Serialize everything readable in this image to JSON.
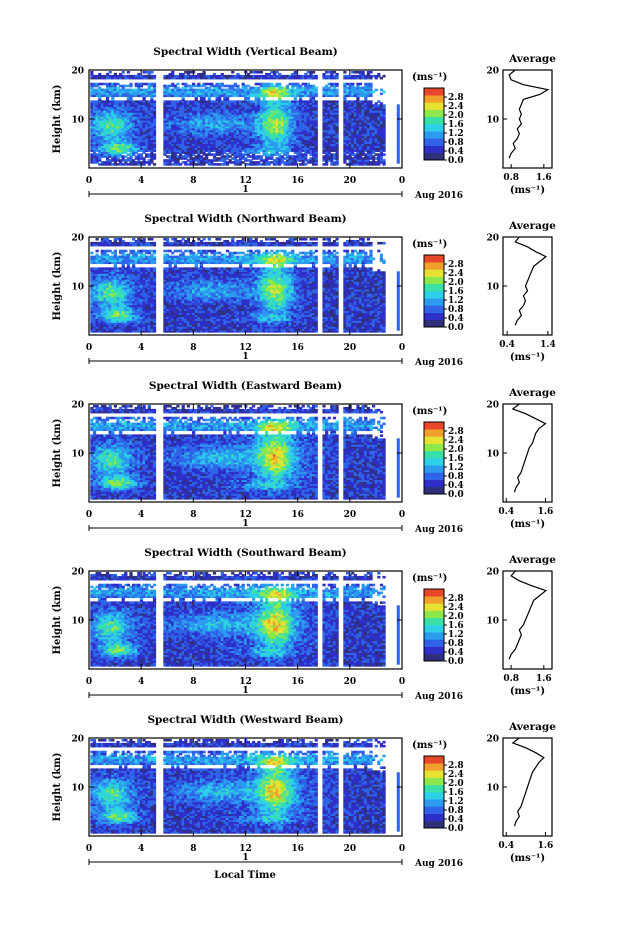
{
  "figure": {
    "time_axis_label": "Local Time",
    "date_label": "Aug 2016",
    "day_marker": "1",
    "units_label": "(ms⁻¹)",
    "height_label": "Height (km)"
  },
  "colorbar": {
    "ticks": [
      "0.0",
      "0.4",
      "0.8",
      "1.2",
      "1.6",
      "2.0",
      "2.4",
      "2.8"
    ],
    "colors": [
      "#30307a",
      "#2e2ec8",
      "#2f64e8",
      "#2a9bef",
      "#2ed0e8",
      "#39e0a8",
      "#8ee84c",
      "#e6e232",
      "#f2a02c",
      "#e8472a"
    ]
  },
  "chart_data": [
    {
      "type": "heatmap",
      "title": "Spectral Width (Vertical Beam)",
      "ylabel": "Height (km)",
      "x_ticks": [
        "0",
        "4",
        "8",
        "12",
        "16",
        "20",
        "0"
      ],
      "y_ticks": [
        "10",
        "20"
      ],
      "xlim": [
        0,
        24
      ],
      "ylim": [
        0,
        20
      ],
      "value_range": [
        0,
        3.2
      ],
      "data_gaps_hours": [
        5.3,
        17.6,
        19.2
      ],
      "average_profile": {
        "title": "Average",
        "xlabel": "(ms⁻¹)",
        "x_ticks": [
          "0.8",
          "1.6"
        ],
        "xlim": [
          0.6,
          1.8
        ],
        "y_ticks": [
          "10",
          "20"
        ],
        "heights_km": [
          2,
          3,
          4,
          5,
          6,
          7,
          8,
          9,
          10,
          11,
          12,
          13,
          14,
          15,
          16,
          17,
          18,
          19,
          20
        ],
        "values": [
          0.75,
          0.8,
          0.9,
          0.85,
          0.95,
          1.0,
          0.95,
          1.05,
          1.0,
          1.05,
          1.0,
          1.05,
          1.1,
          1.5,
          1.7,
          1.1,
          0.8,
          0.75,
          0.9
        ]
      }
    },
    {
      "type": "heatmap",
      "title": "Spectral Width (Northward Beam)",
      "ylabel": "Height (km)",
      "x_ticks": [
        "0",
        "4",
        "8",
        "12",
        "16",
        "20",
        "0"
      ],
      "y_ticks": [
        "10",
        "20"
      ],
      "xlim": [
        0,
        24
      ],
      "ylim": [
        0,
        20
      ],
      "value_range": [
        0,
        3.2
      ],
      "data_gaps_hours": [
        5.3,
        17.6,
        19.2
      ],
      "average_profile": {
        "title": "Average",
        "xlabel": "(ms⁻¹)",
        "x_ticks": [
          "0.4",
          "1.4"
        ],
        "xlim": [
          0.3,
          1.5
        ],
        "y_ticks": [
          "10",
          "20"
        ],
        "heights_km": [
          2,
          3,
          4,
          5,
          6,
          7,
          8,
          9,
          10,
          11,
          12,
          13,
          14,
          15,
          16,
          17,
          18,
          19,
          20
        ],
        "values": [
          0.6,
          0.65,
          0.75,
          0.7,
          0.8,
          0.85,
          0.8,
          0.9,
          0.85,
          0.9,
          0.95,
          1.0,
          1.05,
          1.2,
          1.35,
          1.1,
          0.9,
          0.6,
          0.7
        ]
      }
    },
    {
      "type": "heatmap",
      "title": "Spectral Width (Eastward Beam)",
      "ylabel": "Height (km)",
      "x_ticks": [
        "0",
        "4",
        "8",
        "12",
        "16",
        "20",
        "0"
      ],
      "y_ticks": [
        "10",
        "20"
      ],
      "xlim": [
        0,
        24
      ],
      "ylim": [
        0,
        20
      ],
      "value_range": [
        0,
        3.2
      ],
      "data_gaps_hours": [
        5.3,
        17.6,
        19.2
      ],
      "average_profile": {
        "title": "Average",
        "xlabel": "(ms⁻¹)",
        "x_ticks": [
          "0.4",
          "1.6"
        ],
        "xlim": [
          0.3,
          1.8
        ],
        "y_ticks": [
          "10",
          "20"
        ],
        "heights_km": [
          2,
          3,
          4,
          5,
          6,
          7,
          8,
          9,
          10,
          11,
          12,
          13,
          14,
          15,
          16,
          17,
          18,
          19,
          20
        ],
        "values": [
          0.65,
          0.7,
          0.8,
          0.75,
          0.85,
          0.9,
          0.95,
          1.0,
          1.05,
          1.1,
          1.2,
          1.25,
          1.3,
          1.4,
          1.6,
          1.3,
          1.0,
          0.6,
          0.8
        ]
      }
    },
    {
      "type": "heatmap",
      "title": "Spectral Width (Southward Beam)",
      "ylabel": "Height (km)",
      "x_ticks": [
        "0",
        "4",
        "8",
        "12",
        "16",
        "20",
        "0"
      ],
      "y_ticks": [
        "10",
        "20"
      ],
      "xlim": [
        0,
        24
      ],
      "ylim": [
        0,
        20
      ],
      "value_range": [
        0,
        3.2
      ],
      "data_gaps_hours": [
        5.3,
        17.6,
        19.2
      ],
      "average_profile": {
        "title": "Average",
        "xlabel": "(ms⁻¹)",
        "x_ticks": [
          "0.8",
          "1.6"
        ],
        "xlim": [
          0.6,
          1.8
        ],
        "y_ticks": [
          "10",
          "20"
        ],
        "heights_km": [
          2,
          3,
          4,
          5,
          6,
          7,
          8,
          9,
          10,
          11,
          12,
          13,
          14,
          15,
          16,
          17,
          18,
          19,
          20
        ],
        "values": [
          0.75,
          0.8,
          0.9,
          0.95,
          1.0,
          1.05,
          1.0,
          1.1,
          1.15,
          1.2,
          1.25,
          1.3,
          1.35,
          1.5,
          1.65,
          1.3,
          1.0,
          0.8,
          0.9
        ]
      }
    },
    {
      "type": "heatmap",
      "title": "Spectral Width (Westward Beam)",
      "ylabel": "Height (km)",
      "x_ticks": [
        "0",
        "4",
        "8",
        "12",
        "16",
        "20",
        "0"
      ],
      "y_ticks": [
        "10",
        "20"
      ],
      "xlim": [
        0,
        24
      ],
      "ylim": [
        0,
        20
      ],
      "value_range": [
        0,
        3.2
      ],
      "data_gaps_hours": [
        5.3,
        17.6,
        19.2
      ],
      "average_profile": {
        "title": "Average",
        "xlabel": "(ms⁻¹)",
        "x_ticks": [
          "0.4",
          "1.6"
        ],
        "xlim": [
          0.3,
          1.8
        ],
        "y_ticks": [
          "10",
          "20"
        ],
        "heights_km": [
          2,
          3,
          4,
          5,
          6,
          7,
          8,
          9,
          10,
          11,
          12,
          13,
          14,
          15,
          16,
          17,
          18,
          19,
          20
        ],
        "values": [
          0.65,
          0.7,
          0.8,
          0.75,
          0.85,
          0.9,
          0.95,
          1.0,
          1.05,
          1.1,
          1.15,
          1.2,
          1.3,
          1.4,
          1.55,
          1.3,
          1.0,
          0.6,
          0.8
        ]
      }
    }
  ]
}
